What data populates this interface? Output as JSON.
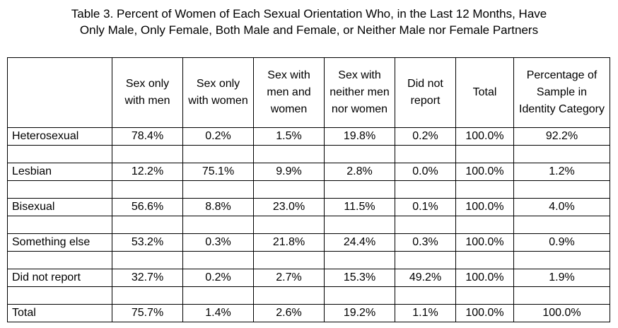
{
  "title_lines": [
    "Table 3. Percent of Women of Each Sexual Orientation Who, in the Last 12 Months, Have",
    "Only Male, Only Female, Both Male and Female, or Neither Male nor Female Partners"
  ],
  "table": {
    "headers": [
      "",
      "Sex only with men",
      "Sex only with women",
      "Sex with men and women",
      "Sex with neither men nor women",
      "Did not report",
      "Total",
      "Percentage of Sample in Identity Category"
    ],
    "rows": [
      [
        "Heterosexual",
        "78.4%",
        "0.2%",
        "1.5%",
        "19.8%",
        "0.2%",
        "100.0%",
        "92.2%"
      ],
      [
        "Lesbian",
        "12.2%",
        "75.1%",
        "9.9%",
        "2.8%",
        "0.0%",
        "100.0%",
        "1.2%"
      ],
      [
        "Bisexual",
        "56.6%",
        "8.8%",
        "23.0%",
        "11.5%",
        "0.1%",
        "100.0%",
        "4.0%"
      ],
      [
        "Something else",
        "53.2%",
        "0.3%",
        "21.8%",
        "24.4%",
        "0.3%",
        "100.0%",
        "0.9%"
      ],
      [
        "Did not report",
        "32.7%",
        "0.2%",
        "2.7%",
        "15.3%",
        "49.2%",
        "100.0%",
        "1.9%"
      ],
      [
        "Total",
        "75.7%",
        "1.4%",
        "2.6%",
        "19.2%",
        "1.1%",
        "100.0%",
        "100.0%"
      ]
    ]
  }
}
